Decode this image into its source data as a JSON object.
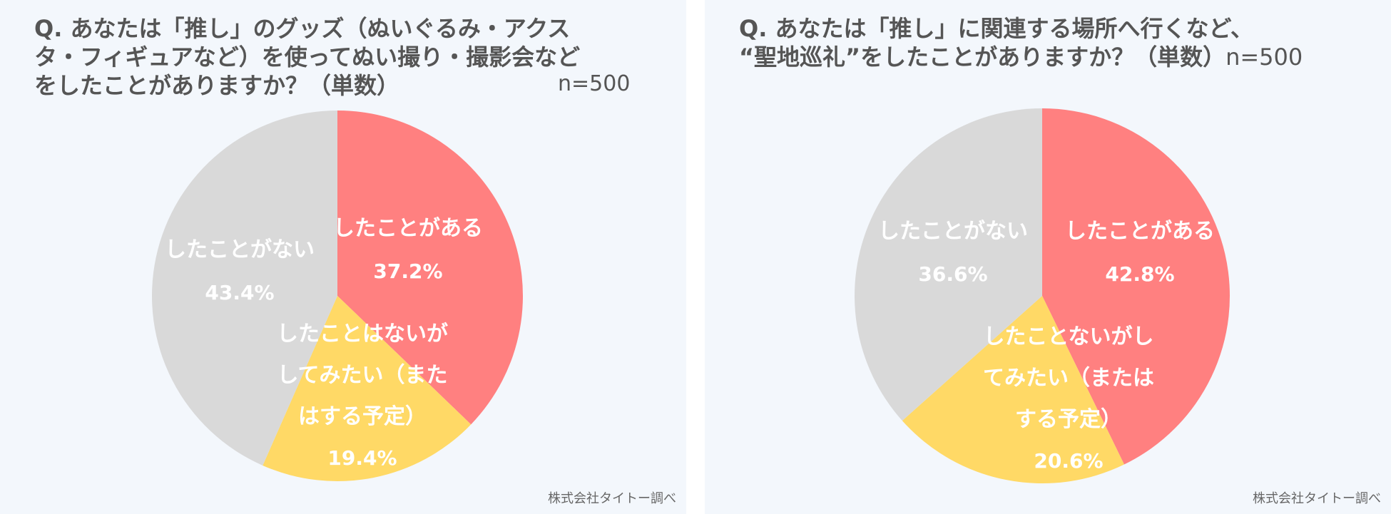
{
  "chart_data": [
    {
      "type": "pie",
      "title_lines": [
        "Q. あなたは「推し」のグッズ（ぬいぐるみ・アクス",
        "タ・フィギュアなど）を使ってぬい撮り・撮影会など",
        "をしたことがありますか？（単数）"
      ],
      "sample_size": "n=500",
      "source": "株式会社タイトー調べ",
      "slices": [
        {
          "label_lines": [
            "したことがある"
          ],
          "value": 37.2,
          "value_text": "37.2%",
          "color": "#ff8080"
        },
        {
          "label_lines": [
            "したことはないが",
            "してみたい（また",
            "はする予定）"
          ],
          "value": 19.4,
          "value_text": "19.4%",
          "color": "#ffd966"
        },
        {
          "label_lines": [
            "したことがない"
          ],
          "value": 43.4,
          "value_text": "43.4%",
          "color": "#d9d9d9"
        }
      ]
    },
    {
      "type": "pie",
      "title_lines": [
        "Q. あなたは「推し」に関連する場所へ行くなど、",
        "“聖地巡礼”をしたことがありますか？（単数）"
      ],
      "sample_size": "n=500",
      "source": "株式会社タイトー調べ",
      "slices": [
        {
          "label_lines": [
            "したことがある"
          ],
          "value": 42.8,
          "value_text": "42.8%",
          "color": "#ff8080"
        },
        {
          "label_lines": [
            "したことないがし",
            "てみたい（または",
            "する予定）"
          ],
          "value": 20.6,
          "value_text": "20.6%",
          "color": "#ffd966"
        },
        {
          "label_lines": [
            "したことがない"
          ],
          "value": 36.6,
          "value_text": "36.6%",
          "color": "#d9d9d9"
        }
      ]
    }
  ]
}
